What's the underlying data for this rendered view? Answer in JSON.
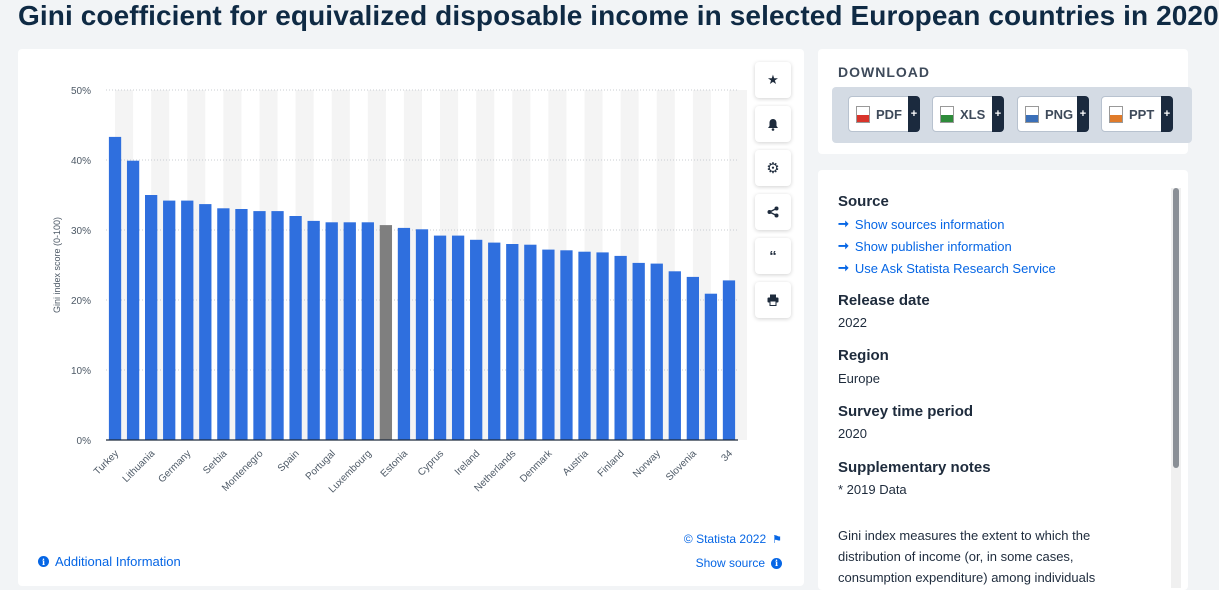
{
  "page": {
    "title": "Gini coefficient for equivalized disposable income in selected European countries in 2020"
  },
  "colors": {
    "bar": "#2f6fde",
    "bar_highlight": "#7f7f7f",
    "band": "#f4f4f4",
    "link": "#0666e5"
  },
  "chart_data": {
    "type": "bar",
    "ylabel": "Gini index score (0-100)",
    "ylim": [
      0,
      50
    ],
    "yticks": [
      "0%",
      "10%",
      "20%",
      "30%",
      "40%",
      "50%"
    ],
    "ytick_values": [
      0,
      10,
      20,
      30,
      40,
      50
    ],
    "grid": true,
    "highlight_index": 15,
    "x_labels_shown": [
      "Turkey",
      "Lithuania",
      "Germany",
      "Serbia",
      "Montenegro",
      "Spain",
      "Portugal",
      "Luxembourg",
      "Estonia",
      "Cyprus",
      "Ireland",
      "Netherlands",
      "Denmark",
      "Austria",
      "Finland",
      "Norway",
      "Slovenia",
      "34"
    ],
    "values": [
      43.3,
      39.9,
      35.0,
      34.2,
      34.2,
      33.7,
      33.1,
      33.0,
      32.7,
      32.7,
      32.0,
      31.3,
      31.1,
      31.1,
      31.1,
      30.7,
      30.3,
      30.1,
      29.2,
      29.2,
      28.6,
      28.2,
      28.0,
      27.9,
      27.2,
      27.1,
      26.9,
      26.8,
      26.3,
      25.3,
      25.2,
      24.1,
      23.3,
      20.9,
      22.8
    ]
  },
  "toolbar": {
    "icons": [
      "star-icon",
      "bell-icon",
      "gear-icon",
      "share-icon",
      "quote-icon",
      "print-icon"
    ]
  },
  "footer": {
    "additional_info": "Additional Information",
    "credit": "© Statista 2022",
    "show_source": "Show source"
  },
  "download": {
    "title": "DOWNLOAD",
    "buttons": [
      {
        "label": "PDF",
        "color": "#d9342b"
      },
      {
        "label": "XLS",
        "color": "#2e8b3a"
      },
      {
        "label": "PNG",
        "color": "#3a6fb8"
      },
      {
        "label": "PPT",
        "color": "#e07b2a"
      }
    ]
  },
  "info": {
    "source_heading": "Source",
    "links": [
      "Show sources information",
      "Show publisher information",
      "Use Ask Statista Research Service"
    ],
    "release_heading": "Release date",
    "release_value": "2022",
    "region_heading": "Region",
    "region_value": "Europe",
    "survey_heading": "Survey time period",
    "survey_value": "2020",
    "notes_heading": "Supplementary notes",
    "notes_value": "* 2019 Data",
    "description": "Gini index measures the extent to which the distribution of income (or, in some cases, consumption expenditure) among individuals"
  }
}
